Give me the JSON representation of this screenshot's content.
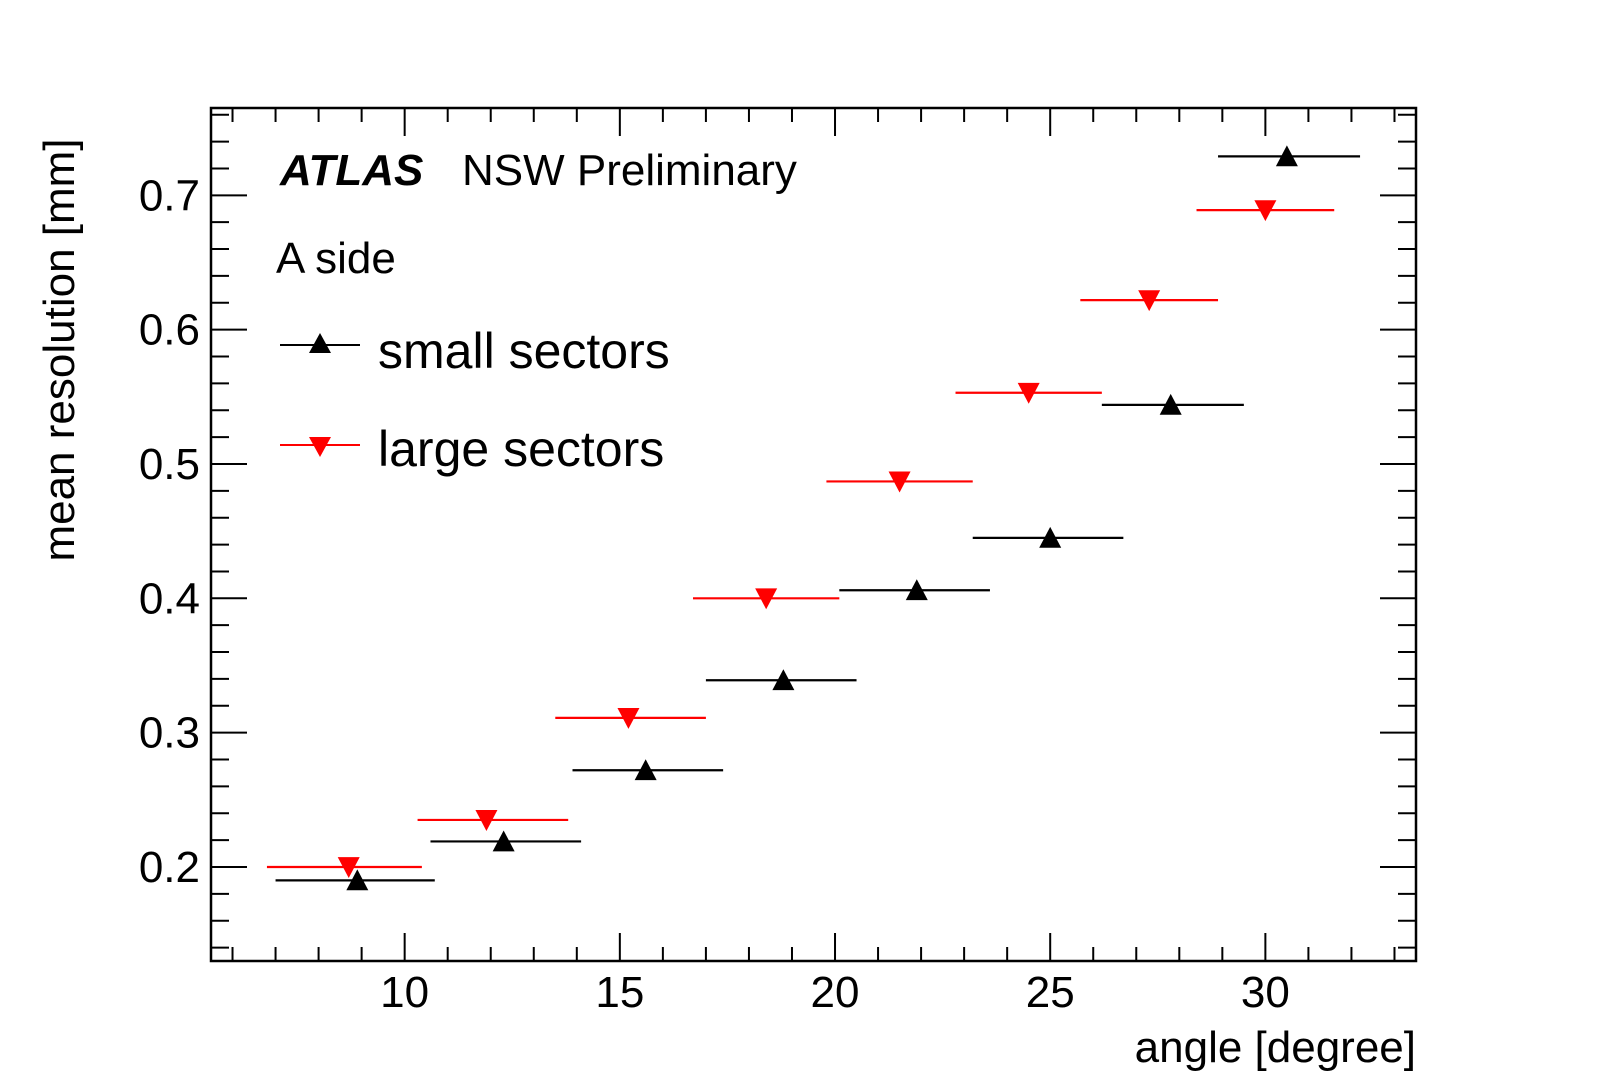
{
  "chart_data": {
    "type": "scatter",
    "title": "",
    "xlabel": "angle [degree]",
    "ylabel": "mean resolution [mm]",
    "xlim": [
      5.5,
      33.5
    ],
    "ylim": [
      0.13,
      0.765
    ],
    "xticks": [
      10,
      15,
      20,
      25,
      30
    ],
    "xtick_labels": [
      "10",
      "15",
      "20",
      "25",
      "30"
    ],
    "yticks": [
      0.2,
      0.3,
      0.4,
      0.5,
      0.6,
      0.7
    ],
    "ytick_labels": [
      "0.2",
      "0.3",
      "0.4",
      "0.5",
      "0.6",
      "0.7"
    ],
    "grid": false,
    "annotations": {
      "experiment": "ATLAS",
      "status": "NSW Preliminary",
      "subtitle": "A side"
    },
    "legend_position": "top-left",
    "series": [
      {
        "name": "small sectors",
        "color": "#000000",
        "marker": "triangle-up",
        "points": [
          {
            "x": 8.9,
            "xlow": 7.0,
            "xhigh": 10.7,
            "y": 0.19
          },
          {
            "x": 12.3,
            "xlow": 10.6,
            "xhigh": 14.1,
            "y": 0.219
          },
          {
            "x": 15.6,
            "xlow": 13.9,
            "xhigh": 17.4,
            "y": 0.272
          },
          {
            "x": 18.8,
            "xlow": 17.0,
            "xhigh": 20.5,
            "y": 0.339
          },
          {
            "x": 21.9,
            "xlow": 20.1,
            "xhigh": 23.6,
            "y": 0.406
          },
          {
            "x": 25.0,
            "xlow": 23.2,
            "xhigh": 26.7,
            "y": 0.445
          },
          {
            "x": 27.8,
            "xlow": 26.2,
            "xhigh": 29.5,
            "y": 0.544
          },
          {
            "x": 30.5,
            "xlow": 28.9,
            "xhigh": 32.2,
            "y": 0.729
          }
        ]
      },
      {
        "name": "large sectors",
        "color": "#ff0000",
        "marker": "triangle-down",
        "points": [
          {
            "x": 8.7,
            "xlow": 6.8,
            "xhigh": 10.4,
            "y": 0.2
          },
          {
            "x": 11.9,
            "xlow": 10.3,
            "xhigh": 13.8,
            "y": 0.235
          },
          {
            "x": 15.2,
            "xlow": 13.5,
            "xhigh": 17.0,
            "y": 0.311
          },
          {
            "x": 18.4,
            "xlow": 16.7,
            "xhigh": 20.1,
            "y": 0.4
          },
          {
            "x": 21.5,
            "xlow": 19.8,
            "xhigh": 23.2,
            "y": 0.487
          },
          {
            "x": 24.5,
            "xlow": 22.8,
            "xhigh": 26.2,
            "y": 0.553
          },
          {
            "x": 27.3,
            "xlow": 25.7,
            "xhigh": 28.9,
            "y": 0.622
          },
          {
            "x": 30.0,
            "xlow": 28.4,
            "xhigh": 31.6,
            "y": 0.689
          }
        ]
      }
    ]
  }
}
